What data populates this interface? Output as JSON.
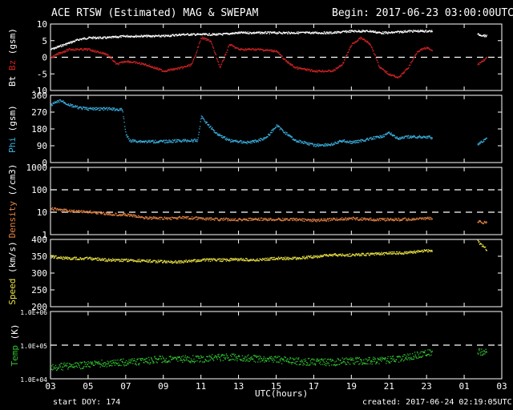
{
  "header": {
    "title": "ACE RTSW (Estimated) MAG & SWEPAM",
    "begin": "Begin: 2017-06-23 03:00:00UTC"
  },
  "footer": {
    "start_doy": "start DOY: 174",
    "created": "created: 2017-06-24 02:19:05UTC",
    "xlabel": "UTC(hours)"
  },
  "colors": {
    "bt": "#ffffff",
    "bz": "#cc2222",
    "phi": "#3ab0e0",
    "density": "#e08040",
    "speed": "#e8e040",
    "temp": "#30c030",
    "axis": "#ffffff"
  },
  "chart_data": {
    "type": "line",
    "x_ticks": [
      "03",
      "05",
      "07",
      "09",
      "11",
      "13",
      "15",
      "17",
      "19",
      "21",
      "23",
      "01",
      "03"
    ],
    "x_range_hours": [
      3,
      27
    ],
    "data_gap_hours": [
      23.3,
      25.7
    ],
    "panels": [
      {
        "id": "mag",
        "ylabel_parts": [
          "Bt",
          "Bz",
          "(gsm)"
        ],
        "ylim": [
          -10,
          10
        ],
        "yticks": [
          "10",
          "5",
          "0",
          "-5",
          "-10"
        ],
        "ytick_values": [
          10,
          5,
          0,
          -5,
          -10
        ],
        "scale": "linear",
        "dashed_refs": [
          0
        ],
        "series": [
          {
            "name": "Bt",
            "points": [
              [
                3,
                2.5
              ],
              [
                3.5,
                3.5
              ],
              [
                4,
                4.5
              ],
              [
                4.5,
                5.5
              ],
              [
                5,
                6
              ],
              [
                6,
                6
              ],
              [
                7,
                6.5
              ],
              [
                8,
                6.5
              ],
              [
                9,
                6.5
              ],
              [
                10,
                7
              ],
              [
                11,
                7
              ],
              [
                12,
                7
              ],
              [
                13,
                7.5
              ],
              [
                14,
                7.5
              ],
              [
                15,
                7.5
              ],
              [
                16,
                7.5
              ],
              [
                17,
                7.5
              ],
              [
                18,
                7.5
              ],
              [
                19,
                8
              ],
              [
                20,
                8
              ],
              [
                20.5,
                7.5
              ],
              [
                21,
                7.5
              ],
              [
                22,
                8
              ],
              [
                23,
                8
              ],
              [
                23.3,
                8
              ],
              [
                25.7,
                7
              ],
              [
                26.2,
                6.5
              ]
            ]
          },
          {
            "name": "Bz",
            "points": [
              [
                3,
                0
              ],
              [
                3.5,
                1.5
              ],
              [
                4,
                2.5
              ],
              [
                5,
                2.5
              ],
              [
                6,
                1
              ],
              [
                6.5,
                -2
              ],
              [
                7,
                -1
              ],
              [
                8,
                -2
              ],
              [
                8.5,
                -3
              ],
              [
                9,
                -4
              ],
              [
                10,
                -3
              ],
              [
                10.5,
                -2
              ],
              [
                11,
                6
              ],
              [
                11.5,
                5
              ],
              [
                12,
                -3
              ],
              [
                12.5,
                4
              ],
              [
                13,
                2.5
              ],
              [
                14,
                2.5
              ],
              [
                15,
                2
              ],
              [
                15.5,
                -1
              ],
              [
                16,
                -3
              ],
              [
                17,
                -4
              ],
              [
                18,
                -4
              ],
              [
                18.5,
                -2
              ],
              [
                19,
                4
              ],
              [
                19.5,
                6
              ],
              [
                20,
                4
              ],
              [
                20.5,
                -3
              ],
              [
                21,
                -5
              ],
              [
                21.5,
                -6
              ],
              [
                22,
                -3
              ],
              [
                22.5,
                2
              ],
              [
                23,
                3
              ],
              [
                23.3,
                2
              ],
              [
                25.7,
                -2
              ],
              [
                26.2,
                0
              ]
            ]
          }
        ]
      },
      {
        "id": "phi",
        "ylabel_parts": [
          "Phi",
          "(gsm)"
        ],
        "ylim": [
          0,
          360
        ],
        "yticks": [
          "360",
          "270",
          "180",
          "90",
          "0"
        ],
        "ytick_values": [
          360,
          270,
          180,
          90,
          0
        ],
        "scale": "linear",
        "dashed_refs": [],
        "series": [
          {
            "name": "Phi",
            "points": [
              [
                3,
                310
              ],
              [
                3.5,
                335
              ],
              [
                4,
                310
              ],
              [
                4.5,
                295
              ],
              [
                5,
                290
              ],
              [
                6,
                290
              ],
              [
                6.8,
                285
              ],
              [
                7,
                150
              ],
              [
                7.2,
                120
              ],
              [
                8,
                115
              ],
              [
                9,
                115
              ],
              [
                10,
                120
              ],
              [
                10.8,
                120
              ],
              [
                11,
                250
              ],
              [
                11.4,
                200
              ],
              [
                11.8,
                160
              ],
              [
                12.5,
                120
              ],
              [
                13,
                115
              ],
              [
                13.5,
                110
              ],
              [
                14,
                120
              ],
              [
                14.5,
                140
              ],
              [
                15,
                200
              ],
              [
                15.5,
                160
              ],
              [
                16,
                120
              ],
              [
                16.5,
                110
              ],
              [
                17,
                95
              ],
              [
                18,
                100
              ],
              [
                18.5,
                120
              ],
              [
                19,
                110
              ],
              [
                20,
                130
              ],
              [
                20.5,
                140
              ],
              [
                21,
                160
              ],
              [
                21.5,
                130
              ],
              [
                22,
                140
              ],
              [
                22.5,
                140
              ],
              [
                23,
                140
              ],
              [
                23.3,
                135
              ],
              [
                25.7,
                100
              ],
              [
                26.2,
                130
              ]
            ]
          }
        ]
      },
      {
        "id": "density",
        "ylabel_parts": [
          "Density",
          "(/cm3)"
        ],
        "ylim": [
          1,
          1000
        ],
        "yticks": [
          "1000",
          "100",
          "10",
          "1"
        ],
        "ytick_values": [
          1000,
          100,
          10,
          1
        ],
        "scale": "log",
        "dashed_refs": [
          100,
          10
        ],
        "series": [
          {
            "name": "Density",
            "points": [
              [
                3,
                15
              ],
              [
                4,
                12
              ],
              [
                5,
                11
              ],
              [
                6,
                9
              ],
              [
                7,
                8
              ],
              [
                8,
                6
              ],
              [
                9,
                5.5
              ],
              [
                10,
                6
              ],
              [
                11,
                5.5
              ],
              [
                12,
                5
              ],
              [
                13,
                5
              ],
              [
                14,
                5
              ],
              [
                15,
                5
              ],
              [
                16,
                5
              ],
              [
                17,
                4.5
              ],
              [
                18,
                5
              ],
              [
                19,
                5.5
              ],
              [
                20,
                5
              ],
              [
                21,
                5
              ],
              [
                22,
                5
              ],
              [
                23,
                5.5
              ],
              [
                23.3,
                5.5
              ],
              [
                25.7,
                4
              ],
              [
                26.2,
                3.5
              ]
            ]
          }
        ]
      },
      {
        "id": "speed",
        "ylabel_parts": [
          "Speed",
          "(km/s)"
        ],
        "ylim": [
          200,
          400
        ],
        "yticks": [
          "400",
          "350",
          "300",
          "250",
          "200"
        ],
        "ytick_values": [
          400,
          350,
          300,
          250,
          200
        ],
        "scale": "linear",
        "dashed_refs": [],
        "series": [
          {
            "name": "Speed",
            "points": [
              [
                3,
                350
              ],
              [
                4,
                345
              ],
              [
                5,
                345
              ],
              [
                6,
                340
              ],
              [
                7,
                340
              ],
              [
                8,
                338
              ],
              [
                9,
                335
              ],
              [
                10,
                335
              ],
              [
                11,
                340
              ],
              [
                12,
                340
              ],
              [
                13,
                342
              ],
              [
                14,
                340
              ],
              [
                15,
                345
              ],
              [
                16,
                345
              ],
              [
                17,
                350
              ],
              [
                18,
                355
              ],
              [
                19,
                355
              ],
              [
                20,
                358
              ],
              [
                21,
                360
              ],
              [
                22,
                362
              ],
              [
                23,
                368
              ],
              [
                23.3,
                368
              ],
              [
                25.7,
                395
              ],
              [
                26.2,
                370
              ]
            ]
          }
        ]
      },
      {
        "id": "temp",
        "ylabel_parts": [
          "Temp",
          "(K)"
        ],
        "ylim": [
          10000,
          1000000
        ],
        "yticks": [
          "1.0E+06",
          "1.0E+05",
          "1.0E+04"
        ],
        "ytick_values": [
          1000000,
          100000,
          10000
        ],
        "scale": "log",
        "dashed_refs": [
          100000
        ],
        "series": [
          {
            "name": "Temp",
            "points": [
              [
                3,
                22000
              ],
              [
                4,
                25000
              ],
              [
                5,
                27000
              ],
              [
                6,
                30000
              ],
              [
                7,
                32000
              ],
              [
                8,
                35000
              ],
              [
                9,
                40000
              ],
              [
                10,
                40000
              ],
              [
                11,
                40000
              ],
              [
                12,
                45000
              ],
              [
                13,
                45000
              ],
              [
                14,
                40000
              ],
              [
                15,
                38000
              ],
              [
                16,
                35000
              ],
              [
                17,
                32000
              ],
              [
                18,
                32000
              ],
              [
                19,
                35000
              ],
              [
                20,
                35000
              ],
              [
                21,
                38000
              ],
              [
                22,
                45000
              ],
              [
                23,
                60000
              ],
              [
                23.3,
                60000
              ],
              [
                25.7,
                70000
              ],
              [
                26.2,
                60000
              ]
            ]
          }
        ]
      }
    ]
  }
}
